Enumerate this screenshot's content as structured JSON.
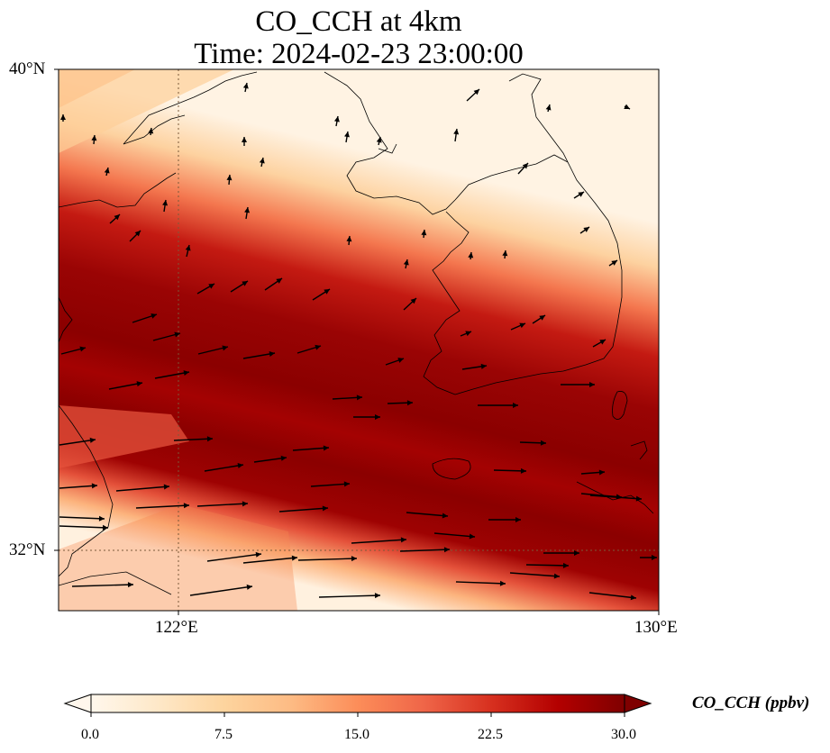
{
  "figure": {
    "title_line1": "CO_CCH at 4km",
    "title_line2": "Time: 2024-02-23 23:00:00"
  },
  "map": {
    "lat_labels": [
      "40°N",
      "32°N"
    ],
    "lon_labels": [
      "122°E",
      "130°E"
    ],
    "lon_range": [
      120,
      130
    ],
    "lat_range": [
      31,
      40
    ],
    "gridlines": true
  },
  "colorbar": {
    "label": "CO_CCH (ppbv)",
    "ticks": [
      "0.0",
      "7.5",
      "15.0",
      "22.5",
      "30.0"
    ],
    "range": [
      0,
      30
    ],
    "colormap": [
      "#fff7ec",
      "#fee8c8",
      "#fdd49e",
      "#fdbb84",
      "#fc8d59",
      "#ef6548",
      "#d7301f",
      "#b30000",
      "#7f0000"
    ],
    "extend": "both"
  },
  "colors": {
    "plume_core": "#8b0000",
    "plume_edge": "#fc8d59",
    "background_low": "#fff3e3",
    "coastline": "#000000"
  }
}
